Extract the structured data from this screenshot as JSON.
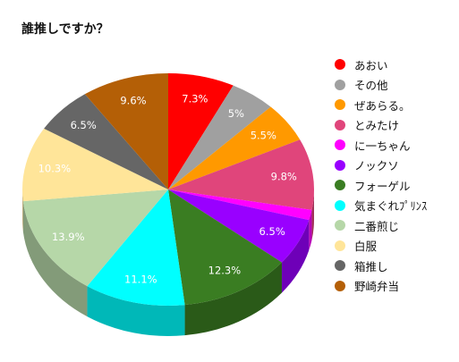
{
  "chart_data": {
    "type": "pie",
    "title": "誰推しですか？",
    "labels": [
      "あおい",
      "その他",
      "ぜあらる。",
      "とみたけ",
      "に一ちゃん",
      "ノックソ",
      "フォーゲル",
      "気まぐれﾌﾟﾘﾝｽ",
      "二番煎じ",
      "白服",
      "箱推し",
      "野崎弁当"
    ],
    "values": [
      7.3,
      5,
      5.5,
      9.8,
      1.4,
      6.5,
      12.3,
      11.1,
      13.9,
      10.3,
      6.5,
      9.6
    ],
    "data_labels": [
      "7.3%",
      "5%",
      "5.5%",
      "9.8%",
      "",
      "6.5%",
      "12.3%",
      "11.1%",
      "13.9%",
      "10.3%",
      "6.5%",
      "9.6%"
    ],
    "colors": [
      "#ff0000",
      "#a0a0a0",
      "#ff9900",
      "#e0457b",
      "#ff00ff",
      "#9900ff",
      "#3a7d22",
      "#00ffff",
      "#b6d7a8",
      "#ffe599",
      "#666666",
      "#b45f06"
    ],
    "legend_position": "right",
    "three_d": true
  }
}
